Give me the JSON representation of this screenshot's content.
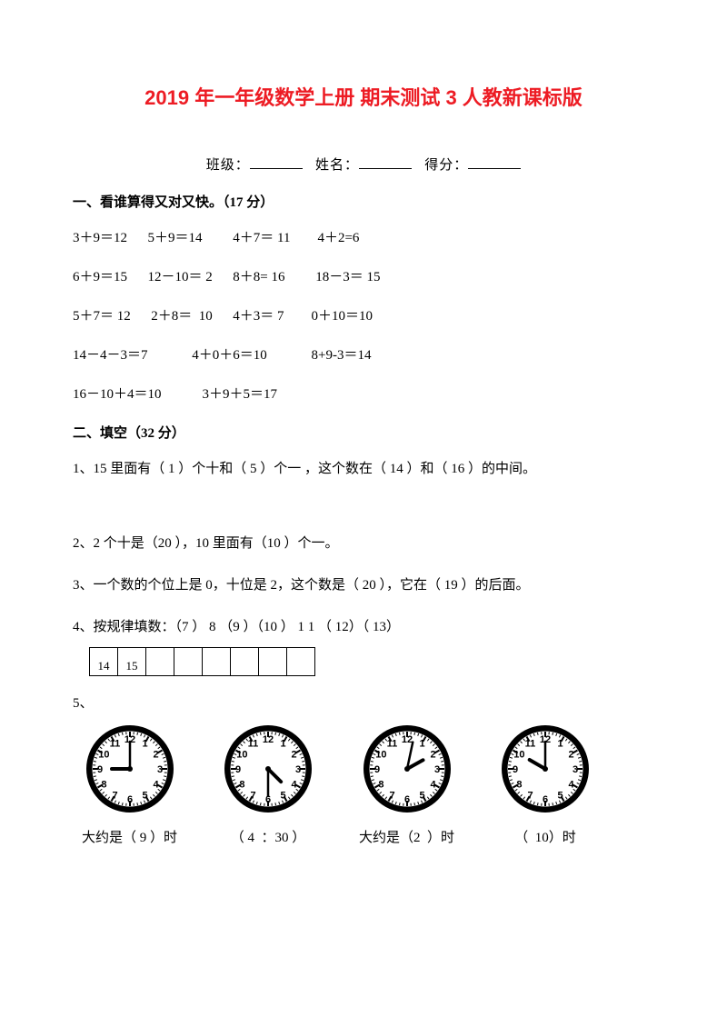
{
  "title": "2019 年一年级数学上册  期末测试 3  人教新课标版",
  "info": {
    "class_label": "班级：",
    "name_label": "姓名：",
    "score_label": "得分："
  },
  "s1": {
    "heading": "一、看谁算得又对又快。（17 分）",
    "r1": "3＋9＝12      5＋9＝14         4＋7＝ 11        4＋2=6",
    "r2": "6＋9＝15      12－10＝ 2      8＋8= 16         18－3＝ 15",
    "r3": "5＋7＝ 12      2＋8＝  10      4＋3＝ 7        0＋10＝10",
    "r4": "14－4－3＝7             4＋0＋6＝10             8+9-3＝14",
    "r5": "16－10＋4＝10            3＋9＋5＝17"
  },
  "s2": {
    "heading": "二、填空（32 分）",
    "q1": "1、15 里面有（ 1  ）个十和（ 5 ）个一 ，这个数在（  14  ）和（  16  ）的中间。",
    "q2": "2、2 个十是（20   ），10 里面有（10   ）个一。",
    "q3": "3、一个数的个位上是 0，十位是 2，这个数是（  20  ），它在（  19  ）的后面。",
    "q4": "4、按规律填数：（7  ） 8 （9  ）（10  ） 1 1 （  12）（  13）",
    "boxes": [
      "14",
      "15",
      "",
      "",
      "",
      "",
      "",
      ""
    ],
    "q5_label": "5、",
    "clocks": [
      {
        "hour": 9,
        "minute": 0,
        "label": "大约是（ 9 ）时"
      },
      {
        "hour": 4,
        "minute": 30,
        "label": "（ 4  ：30 ）"
      },
      {
        "hour": 2,
        "minute": 2,
        "label": "大约是（2  ）时"
      },
      {
        "hour": 10,
        "minute": 0,
        "label": "（  10）时"
      }
    ]
  },
  "clock_style": {
    "size": 100,
    "face_fill": "#ffffff",
    "stroke": "#000000",
    "ring_outer": 48,
    "ring_inner": 42,
    "tick_len": 6,
    "num_radius": 33,
    "num_fontsize": 11,
    "hour_len": 20,
    "hour_w": 4,
    "min_len": 30,
    "min_w": 2.5
  }
}
